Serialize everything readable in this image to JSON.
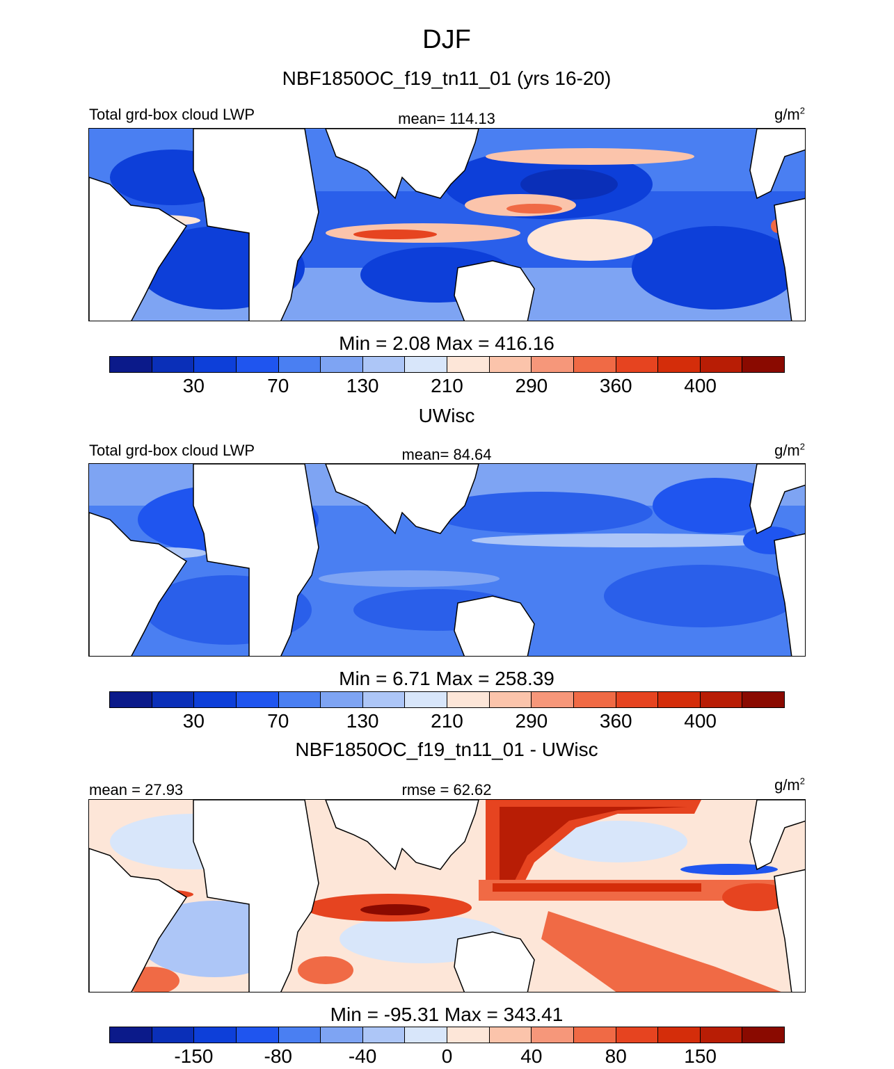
{
  "title": "DJF",
  "colors": {
    "abs_palette": [
      "#0b1a8a",
      "#0a2fb8",
      "#0d3fd9",
      "#1f55ef",
      "#4a7ff2",
      "#7ea4f3",
      "#adc6f7",
      "#d8e6fa",
      "#fde6d8",
      "#fbc4ab",
      "#f6977a",
      "#f06a45",
      "#e64420",
      "#d42d0a",
      "#b81d05",
      "#8a0a00"
    ],
    "diff_palette": [
      "#0b1a8a",
      "#0a2fb8",
      "#0d3fd9",
      "#1f55ef",
      "#4a7ff2",
      "#7ea4f3",
      "#adc6f7",
      "#d8e6fa",
      "#fde6d8",
      "#fbc4ab",
      "#f6977a",
      "#f06a45",
      "#e64420",
      "#d42d0a",
      "#b81d05",
      "#8a0a00"
    ],
    "land": "#ffffff",
    "coast": "#000000"
  },
  "panels": [
    {
      "id": "model",
      "heading": "NBF1850OC_f19_tn11_01 (yrs 16-20)",
      "left_label": "Total grd-box cloud LWP",
      "center_label": "mean= 114.13",
      "units": "g/m",
      "units_exp": "2",
      "minmax": "Min =   2.08 Max = 416.16",
      "ticks": [
        "30",
        "70",
        "130",
        "210",
        "290",
        "360",
        "400"
      ]
    },
    {
      "id": "obs",
      "heading": "UWisc",
      "left_label": "Total grd-box cloud LWP",
      "center_label": "mean=  84.64",
      "units": "g/m",
      "units_exp": "2",
      "minmax": "Min =   6.71 Max = 258.39",
      "ticks": [
        "30",
        "70",
        "130",
        "210",
        "290",
        "360",
        "400"
      ]
    },
    {
      "id": "diff",
      "heading": "NBF1850OC_f19_tn11_01 - UWisc",
      "left_label": "mean =  27.93",
      "center_label": "rmse =  62.62",
      "units": "g/m",
      "units_exp": "2",
      "minmax": "Min = -95.31 Max = 343.41",
      "ticks": [
        "-150",
        "-80",
        "-40",
        "0",
        "40",
        "80",
        "150"
      ]
    }
  ]
}
